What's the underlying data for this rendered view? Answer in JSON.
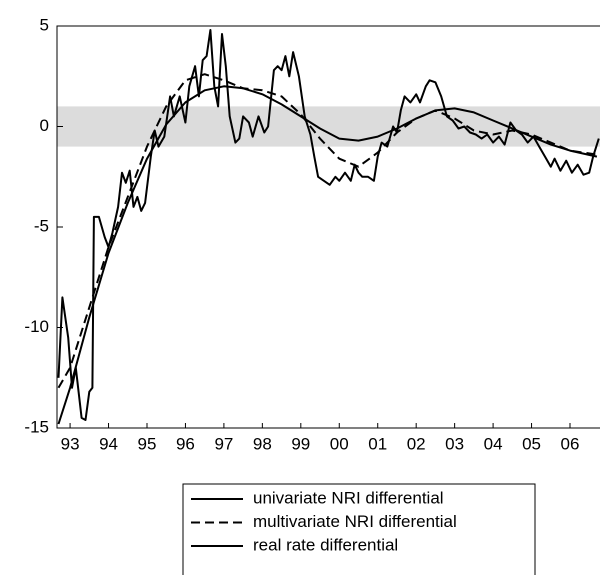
{
  "chart_data": {
    "type": "line",
    "xlim": [
      1993.16,
      2007.28
    ],
    "ylim": [
      -15,
      5
    ],
    "yticks": [
      5,
      0,
      -5,
      -10,
      -15
    ],
    "xticks": [
      {
        "value": 1993.5,
        "label": "93"
      },
      {
        "value": 1994.5,
        "label": "94"
      },
      {
        "value": 1995.5,
        "label": "95"
      },
      {
        "value": 1996.5,
        "label": "96"
      },
      {
        "value": 1997.5,
        "label": "97"
      },
      {
        "value": 1998.5,
        "label": "98"
      },
      {
        "value": 1999.5,
        "label": "99"
      },
      {
        "value": 2000.5,
        "label": "00"
      },
      {
        "value": 2001.5,
        "label": "01"
      },
      {
        "value": 2002.5,
        "label": "02"
      },
      {
        "value": 2003.5,
        "label": "03"
      },
      {
        "value": 2004.5,
        "label": "04"
      },
      {
        "value": 2005.5,
        "label": "05"
      },
      {
        "value": 2006.5,
        "label": "06"
      }
    ],
    "band": [
      -1,
      1
    ],
    "band_color": "#dcdcdc",
    "series": [
      {
        "name": "univariate NRI differential",
        "color": "#000000",
        "dash": false,
        "x": [
          1993.2,
          1993.5,
          1994.0,
          1994.5,
          1995.0,
          1995.5,
          1996.0,
          1996.5,
          1997.0,
          1997.5,
          1998.0,
          1998.5,
          1999.0,
          1999.5,
          2000.0,
          2000.5,
          2001.0,
          2001.5,
          2002.0,
          2002.5,
          2003.0,
          2003.5,
          2004.0,
          2004.5,
          2005.0,
          2005.5,
          2006.0,
          2006.5,
          2007.2
        ],
        "values": [
          -14.8,
          -13.0,
          -9.5,
          -6.3,
          -3.8,
          -1.6,
          0.1,
          1.2,
          1.8,
          2.0,
          1.9,
          1.6,
          1.1,
          0.5,
          -0.1,
          -0.6,
          -0.7,
          -0.5,
          -0.1,
          0.4,
          0.8,
          0.9,
          0.7,
          0.3,
          -0.1,
          -0.5,
          -0.9,
          -1.2,
          -1.5
        ]
      },
      {
        "name": "multivariate NRI differential",
        "color": "#000000",
        "dash": true,
        "x": [
          1993.2,
          1993.5,
          1994.0,
          1994.5,
          1995.0,
          1995.5,
          1996.0,
          1996.5,
          1997.0,
          1997.5,
          1998.0,
          1998.5,
          1999.0,
          1999.5,
          2000.0,
          2000.5,
          2001.0,
          2001.5,
          2002.0,
          2002.5,
          2003.0,
          2003.5,
          2004.0,
          2004.5,
          2005.0,
          2005.5,
          2006.0,
          2006.5,
          2007.2
        ],
        "values": [
          -13.0,
          -12.0,
          -9.0,
          -6.0,
          -3.5,
          -1.0,
          1.0,
          2.3,
          2.6,
          2.3,
          1.9,
          1.8,
          1.5,
          0.6,
          -0.6,
          -1.6,
          -2.0,
          -1.3,
          -0.3,
          0.4,
          0.8,
          0.4,
          -0.2,
          -0.4,
          -0.2,
          -0.4,
          -0.8,
          -1.2,
          -1.4
        ]
      },
      {
        "name": "real rate differential",
        "color": "#000000",
        "dash": false,
        "x": [
          1993.2,
          1993.3,
          1993.45,
          1993.55,
          1993.65,
          1993.8,
          1993.9,
          1994.0,
          1994.08,
          1994.12,
          1994.25,
          1994.4,
          1994.5,
          1994.6,
          1994.75,
          1994.85,
          1994.95,
          1995.05,
          1995.15,
          1995.25,
          1995.35,
          1995.45,
          1995.6,
          1995.7,
          1995.8,
          1995.95,
          1996.1,
          1996.2,
          1996.35,
          1996.5,
          1996.6,
          1996.75,
          1996.85,
          1996.95,
          1997.05,
          1997.15,
          1997.25,
          1997.35,
          1997.45,
          1997.55,
          1997.65,
          1997.8,
          1997.9,
          1998.0,
          1998.15,
          1998.25,
          1998.4,
          1998.55,
          1998.65,
          1998.8,
          1998.9,
          1999.0,
          1999.1,
          1999.2,
          1999.3,
          1999.45,
          1999.6,
          1999.75,
          1999.85,
          1999.95,
          2000.1,
          2000.25,
          2000.4,
          2000.5,
          2000.65,
          2000.8,
          2000.9,
          2001.0,
          2001.1,
          2001.25,
          2001.4,
          2001.5,
          2001.6,
          2001.75,
          2001.9,
          2002.0,
          2002.1,
          2002.2,
          2002.35,
          2002.5,
          2002.6,
          2002.75,
          2002.85,
          2003.0,
          2003.15,
          2003.3,
          2003.45,
          2003.6,
          2003.75,
          2003.9,
          2004.05,
          2004.2,
          2004.35,
          2004.5,
          2004.65,
          2004.8,
          2004.95,
          2005.1,
          2005.25,
          2005.4,
          2005.55,
          2005.7,
          2005.85,
          2006.0,
          2006.1,
          2006.25,
          2006.4,
          2006.55,
          2006.7,
          2006.85,
          2007.0,
          2007.1,
          2007.25
        ],
        "values": [
          -12.5,
          -8.5,
          -10.5,
          -13.0,
          -12.0,
          -14.5,
          -14.6,
          -13.2,
          -13.0,
          -4.5,
          -4.5,
          -5.5,
          -6.0,
          -5.3,
          -4.0,
          -2.3,
          -2.8,
          -2.2,
          -4.0,
          -3.5,
          -4.2,
          -3.8,
          -1.5,
          -0.2,
          -1.0,
          -0.5,
          1.5,
          0.5,
          1.5,
          0.2,
          2.0,
          3.0,
          1.5,
          3.3,
          3.5,
          4.8,
          2.0,
          1.0,
          4.6,
          3.0,
          0.5,
          -0.8,
          -0.6,
          0.5,
          0.2,
          -0.5,
          0.5,
          -0.3,
          0.0,
          2.8,
          3.0,
          2.8,
          3.5,
          2.5,
          3.7,
          2.5,
          0.5,
          -0.4,
          -1.5,
          -2.5,
          -2.7,
          -2.9,
          -2.5,
          -2.7,
          -2.3,
          -2.7,
          -1.9,
          -2.3,
          -2.5,
          -2.5,
          -2.7,
          -1.5,
          -0.8,
          -1.0,
          0.0,
          -0.3,
          0.8,
          1.5,
          1.2,
          1.6,
          1.2,
          2.0,
          2.3,
          2.2,
          1.5,
          0.5,
          0.3,
          -0.1,
          0.0,
          -0.3,
          -0.4,
          -0.6,
          -0.4,
          -0.8,
          -0.5,
          -0.9,
          0.2,
          -0.2,
          -0.4,
          -0.8,
          -0.5,
          -1.0,
          -1.5,
          -2.0,
          -1.6,
          -2.2,
          -1.7,
          -2.3,
          -1.9,
          -2.4,
          -2.3,
          -1.5,
          -0.6
        ]
      }
    ]
  }
}
